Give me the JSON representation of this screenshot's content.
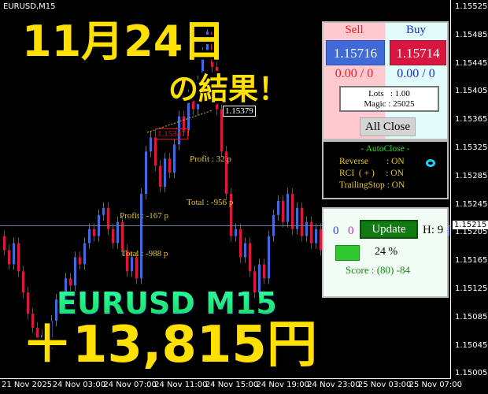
{
  "window": {
    "symbol": "EURUSD,M15"
  },
  "price_axis": {
    "ticks": [
      "1.15525",
      "1.15485",
      "1.15445",
      "1.15405",
      "1.15365",
      "1.15325",
      "1.15285",
      "1.15245",
      "1.15205",
      "1.15165",
      "1.15125",
      "1.15085",
      "1.15045",
      "1.15005"
    ],
    "current": "1.15215"
  },
  "time_axis": {
    "ticks": [
      "21 Nov 2025",
      "24 Nov 03:00",
      "24 Nov 07:00",
      "24 Nov 11:00",
      "24 Nov 15:00",
      "24 Nov 19:00",
      "24 Nov 23:00",
      "25 Nov 03:00",
      "25 Nov 07:00"
    ]
  },
  "chart_data": {
    "type": "candlestick",
    "colors": {
      "up": "#3d6be0",
      "down": "#e0143c"
    },
    "closes": [
      1.1518,
      1.1516,
      1.1519,
      1.1515,
      1.1512,
      1.1509,
      1.1507,
      1.1505,
      1.1506,
      1.1504,
      1.1508,
      1.1511,
      1.151,
      1.1514,
      1.1513,
      1.1517,
      1.1516,
      1.1519,
      1.1521,
      1.152,
      1.1523,
      1.1524,
      1.1521,
      1.1519,
      1.1522,
      1.1518,
      1.1515,
      1.1517,
      1.1514,
      1.1526,
      1.1532,
      1.1534,
      1.153,
      1.1527,
      1.1531,
      1.1529,
      1.1533,
      1.1537,
      1.1535,
      1.154,
      1.1538,
      1.1542,
      1.1546,
      1.1549,
      1.1544,
      1.1538,
      1.1532,
      1.1526,
      1.152,
      1.1521,
      1.1517,
      1.1519,
      1.1515,
      1.1512,
      1.1516,
      1.1514,
      1.152,
      1.1523,
      1.1525,
      1.1522,
      1.1526,
      1.1521,
      1.1524,
      1.152,
      1.1522,
      1.1519,
      1.1521,
      1.1518,
      1.152,
      1.1522,
      1.1521,
      1.1523,
      1.152,
      1.1519,
      1.1522,
      1.1521,
      1.152,
      1.1523,
      1.1522,
      1.152,
      1.1521,
      1.1522,
      1.1519,
      1.1521,
      1.1522,
      1.152,
      1.1521,
      1.1523,
      1.1522,
      1.152,
      1.1521,
      1.1522,
      1.1521,
      1.152,
      1.15215
    ]
  },
  "trade_labels": {
    "entry_price": "1.15347",
    "exit_price": "1.15379",
    "profit1": "Profit : 32 p",
    "total1": "Total : -956 p",
    "profit2": "Profit : -167 p",
    "total2": "Total : -988 p"
  },
  "overlay": {
    "date": "11月24日",
    "result": "の結果！",
    "pair": "EURUSD M15",
    "amount": "＋13,815円"
  },
  "panel": {
    "sell_label": "Sell",
    "buy_label": "Buy",
    "sell_price": "1.15716",
    "buy_price": "1.15714",
    "sell_pl": "0.00 / 0",
    "buy_pl": "0.00 / 0",
    "lots": "Lots   : 1.00",
    "magic": "Magic : 25025",
    "all_close": "All Close",
    "autoclose_title": "- AutoClose -",
    "reverse": "Reverse        : ON",
    "rci": "RCI  ( + )     : ON",
    "trailing": "TrailingStop : ON",
    "count_blue": "0",
    "count_magenta": "0",
    "update": "Update",
    "h": "H: 9",
    "percent": "24 %",
    "score": "Score : (80) -84"
  }
}
